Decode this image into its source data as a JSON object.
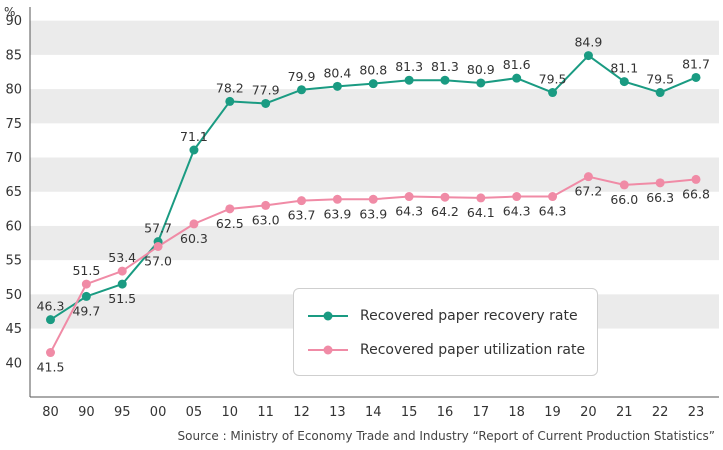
{
  "chart_data": {
    "type": "line",
    "unit_label": "%",
    "categories": [
      "80",
      "90",
      "95",
      "00",
      "05",
      "10",
      "11",
      "12",
      "13",
      "14",
      "15",
      "16",
      "17",
      "18",
      "19",
      "20",
      "21",
      "22",
      "23"
    ],
    "series": [
      {
        "name": "Recovered paper recovery rate",
        "color": "#1a9b82",
        "values": [
          46.3,
          49.7,
          51.5,
          57.7,
          71.1,
          78.2,
          77.9,
          79.9,
          80.4,
          80.8,
          81.3,
          81.3,
          80.9,
          81.6,
          79.5,
          84.9,
          81.1,
          79.5,
          81.7
        ],
        "labels": [
          "46.3",
          "49.7",
          "51.5",
          "57.7",
          "71.1",
          "78.2",
          "77.9",
          "79.9",
          "80.4",
          "80.8",
          "81.3",
          "81.3",
          "80.9",
          "81.6",
          "79.5",
          "84.9",
          "81.1",
          "79.5",
          "81.7"
        ]
      },
      {
        "name": "Recovered paper utilization rate",
        "color": "#f08ba6",
        "values": [
          41.5,
          51.5,
          53.4,
          57.0,
          60.3,
          62.5,
          63.0,
          63.7,
          63.9,
          63.9,
          64.3,
          64.2,
          64.1,
          64.3,
          64.3,
          67.2,
          66.0,
          66.3,
          66.8
        ],
        "labels": [
          "41.5",
          "51.5",
          "53.4",
          "57.0",
          "60.3",
          "62.5",
          "63.0",
          "63.7",
          "63.9",
          "63.9",
          "64.3",
          "64.2",
          "64.1",
          "64.3",
          "64.3",
          "67.2",
          "66.0",
          "66.3",
          "66.8"
        ]
      }
    ],
    "ylim": [
      35,
      92
    ],
    "yticks": [
      "40",
      "45",
      "50",
      "55",
      "60",
      "65",
      "70",
      "75",
      "80",
      "85",
      "90"
    ],
    "grid": "alternating horizontal bands",
    "legend_position": "bottom-right"
  },
  "source": "Source : Ministry of Economy Trade and Industry “Report of Current Production Statistics”"
}
